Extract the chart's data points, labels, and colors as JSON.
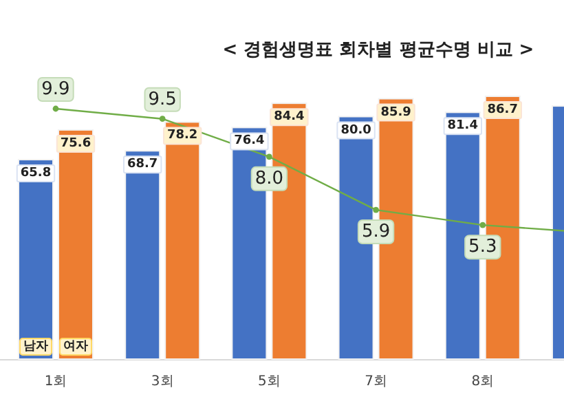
{
  "chart_data": {
    "type": "bar",
    "title": "< 경험생명표 회차별 평균수명 비교 >",
    "categories": [
      "1회",
      "3회",
      "5회",
      "7회",
      "8회",
      null
    ],
    "series": [
      {
        "name": "남자",
        "color": "#4472c4",
        "values": [
          65.8,
          68.7,
          76.4,
          80.0,
          81.4,
          83.5
        ],
        "value_labels": [
          "65.8",
          "68.7",
          "76.4",
          "80.0",
          "81.4",
          null
        ]
      },
      {
        "name": "여자",
        "color": "#ed7d31",
        "values": [
          75.6,
          78.2,
          84.4,
          85.9,
          86.7,
          null
        ],
        "value_labels": [
          "75.6",
          "78.2",
          "84.4",
          "85.9",
          "86.7",
          null
        ]
      },
      {
        "type": "line",
        "axis": "y2",
        "color": "#70ad47",
        "marker": "circle",
        "values": [
          9.9,
          9.5,
          8.0,
          5.9,
          5.3,
          5.0
        ],
        "value_labels": [
          "9.9",
          "9.5",
          "8.0",
          "5.9",
          "5.3",
          null
        ]
      }
    ],
    "legend": "bottom left"
  }
}
